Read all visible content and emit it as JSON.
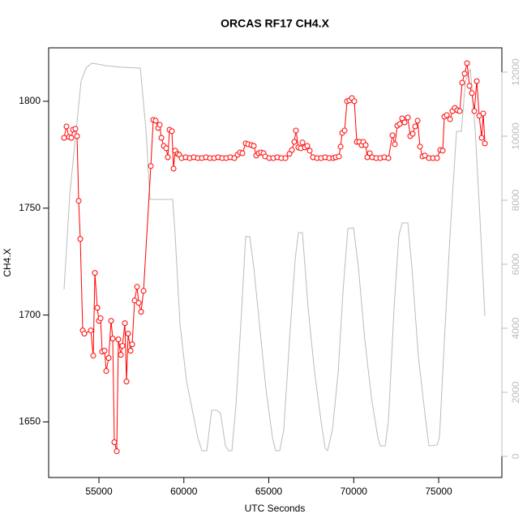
{
  "chart_data": {
    "type": "line",
    "title": "ORCAS RF17 CH4.X",
    "x_label": "UTC Seconds",
    "y_label": "CH4.X",
    "xlim": [
      52040,
      78720
    ],
    "ylim": [
      1624,
      1825
    ],
    "y2lim": [
      -660,
      12760
    ],
    "xticks": [
      55000,
      60000,
      65000,
      70000,
      75000
    ],
    "yticks": [
      1650,
      1700,
      1750,
      1800
    ],
    "y2ticks": [
      0,
      2000,
      4000,
      6000,
      8000,
      10000,
      12000
    ],
    "y2_color": "#bbbbbb",
    "series": [
      {
        "color": "#ff0000",
        "markers": true,
        "x": [
          52948,
          53091,
          53234,
          53377,
          53473,
          53616,
          53712,
          53807,
          53902,
          54046,
          54141,
          54523,
          54666,
          54762,
          54905,
          55000,
          55096,
          55191,
          55334,
          55430,
          55573,
          55716,
          55812,
          55907,
          56050,
          56146,
          56289,
          56384,
          56528,
          56623,
          56719,
          56862,
          56957,
          57100,
          57244,
          57339,
          57482,
          57626,
          58055,
          58198,
          58341,
          58485,
          58580,
          58676,
          58819,
          58962,
          59058,
          59153,
          59296,
          59391,
          59487,
          59630,
          59726,
          59869,
          60108,
          60347,
          60585,
          60824,
          61062,
          61301,
          61540,
          61778,
          62017,
          62255,
          62494,
          62733,
          62971,
          63162,
          63305,
          63448,
          63639,
          63783,
          63974,
          64117,
          64260,
          64403,
          64546,
          64689,
          64785,
          65024,
          65262,
          65501,
          65740,
          65979,
          66217,
          66360,
          66503,
          66599,
          66742,
          66885,
          66981,
          67124,
          67267,
          67410,
          67601,
          67840,
          68078,
          68317,
          68556,
          68794,
          68937,
          69128,
          69224,
          69319,
          69463,
          69606,
          69749,
          69892,
          70035,
          70179,
          70322,
          70465,
          70561,
          70704,
          70799,
          70942,
          71085,
          71324,
          71563,
          71801,
          72040,
          72278,
          72422,
          72565,
          72708,
          72851,
          72994,
          73185,
          73328,
          73472,
          73615,
          73758,
          73901,
          74045,
          74188,
          74426,
          74665,
          74904,
          75095,
          75238,
          75334,
          75477,
          75668,
          75811,
          75954,
          76097,
          76240,
          76383,
          76527,
          76670,
          76813,
          76956,
          77099,
          77242,
          77386,
          77529,
          77624,
          77720
        ],
        "values": [
          1782.9,
          1788.2,
          1783.3,
          1782.9,
          1786.7,
          1787.1,
          1783.7,
          1753.4,
          1735.6,
          1692.8,
          1691.3,
          1692.8,
          1681.0,
          1719.7,
          1703.4,
          1697.3,
          1698.5,
          1682.9,
          1683.3,
          1673.8,
          1679.9,
          1697.3,
          1689.0,
          1640.5,
          1636.3,
          1688.6,
          1681.4,
          1685.6,
          1696.2,
          1668.9,
          1691.3,
          1683.3,
          1686.3,
          1706.8,
          1713.2,
          1705.7,
          1701.5,
          1711.3,
          1769.7,
          1791.3,
          1790.9,
          1787.5,
          1789.0,
          1782.9,
          1779.1,
          1778.0,
          1773.8,
          1786.7,
          1786.0,
          1768.5,
          1776.9,
          1775.4,
          1775.0,
          1773.4,
          1773.8,
          1773.4,
          1773.8,
          1773.4,
          1773.4,
          1773.8,
          1773.4,
          1773.4,
          1773.8,
          1773.4,
          1773.4,
          1773.8,
          1773.4,
          1775.0,
          1776.1,
          1775.7,
          1780.3,
          1779.9,
          1779.5,
          1779.1,
          1774.6,
          1775.7,
          1776.1,
          1775.7,
          1774.2,
          1773.4,
          1773.4,
          1773.8,
          1773.4,
          1773.4,
          1775.4,
          1777.2,
          1781.0,
          1786.3,
          1778.4,
          1778.0,
          1780.7,
          1778.4,
          1779.1,
          1776.9,
          1773.8,
          1773.4,
          1773.4,
          1773.8,
          1773.4,
          1773.4,
          1773.8,
          1774.2,
          1778.8,
          1785.2,
          1786.3,
          1800.0,
          1800.4,
          1801.5,
          1800.0,
          1781.0,
          1781.0,
          1779.5,
          1781.0,
          1779.5,
          1773.8,
          1775.7,
          1773.8,
          1773.4,
          1773.4,
          1773.8,
          1773.4,
          1784.1,
          1779.9,
          1788.6,
          1789.4,
          1792.0,
          1790.1,
          1792.4,
          1783.7,
          1784.8,
          1788.2,
          1790.9,
          1778.8,
          1774.2,
          1774.6,
          1773.4,
          1773.4,
          1773.4,
          1777.2,
          1776.9,
          1792.8,
          1793.5,
          1791.6,
          1795.4,
          1796.9,
          1795.8,
          1795.4,
          1808.7,
          1812.9,
          1817.8,
          1807.2,
          1803.8,
          1795.4,
          1809.4,
          1793.2,
          1782.9,
          1794.3,
          1780.3
        ]
      },
      {
        "color": "#bbbbbb",
        "axis": "y2",
        "markers": false,
        "x": [
          52948,
          53282,
          53664,
          53950,
          54237,
          54571,
          54905,
          55382,
          56337,
          57434,
          57768,
          58007,
          59343,
          59487,
          59773,
          60155,
          60537,
          60823,
          61062,
          61348,
          61635,
          61921,
          62160,
          62446,
          62637,
          62828,
          63067,
          63353,
          63639,
          63878,
          64117,
          64451,
          64833,
          65215,
          65406,
          65644,
          65883,
          66217,
          66551,
          66742,
          66981,
          67315,
          67697,
          68079,
          68317,
          68460,
          68747,
          69081,
          69367,
          69654,
          69988,
          70274,
          70656,
          71038,
          71420,
          71563,
          71849,
          72040,
          72374,
          72660,
          72851,
          73185,
          73424,
          73806,
          74188,
          74426,
          74904,
          75047,
          75334,
          75668,
          75907,
          76050,
          76336,
          76575,
          76861,
          77147,
          77433,
          77720
        ],
        "values": [
          5216,
          8178,
          10204,
          11723,
          12128,
          12280,
          12255,
          12204,
          12154,
          12128,
          10204,
          8026,
          8026,
          6912,
          4127,
          2355,
          1342,
          582,
          177,
          177,
          1443,
          1443,
          1342,
          329,
          177,
          177,
          1595,
          4127,
          6862,
          6862,
          5900,
          4127,
          2102,
          582,
          177,
          177,
          836,
          3621,
          6153,
          6988,
          6988,
          4634,
          2608,
          1089,
          253,
          177,
          836,
          2608,
          5140,
          7115,
          7140,
          5900,
          3621,
          1848,
          582,
          329,
          329,
          1089,
          4634,
          6912,
          7292,
          7292,
          5900,
          3114,
          1342,
          329,
          354,
          582,
          3621,
          6912,
          8938,
          10153,
          10153,
          11723,
          12103,
          10204,
          7419,
          4380
        ]
      }
    ]
  }
}
